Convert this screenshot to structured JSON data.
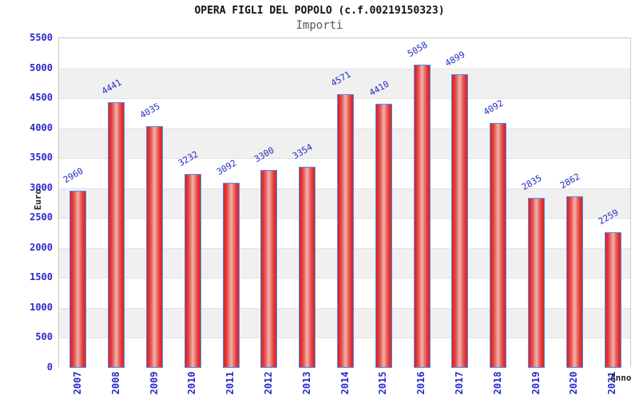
{
  "header": {
    "title": "OPERA FIGLI DEL POPOLO (c.f.00219150323)",
    "subtitle": "Importi"
  },
  "chart_data": {
    "type": "bar",
    "title": "OPERA FIGLI DEL POPOLO (c.f.00219150323)",
    "subtitle": "Importi",
    "xlabel": "Anno",
    "ylabel": "Euro",
    "categories": [
      "2007",
      "2008",
      "2009",
      "2010",
      "2011",
      "2012",
      "2013",
      "2014",
      "2015",
      "2016",
      "2017",
      "2018",
      "2019",
      "2020",
      "2021"
    ],
    "values": [
      2960,
      4441,
      4035,
      3232,
      3092,
      3300,
      3354,
      4571,
      4410,
      5058,
      4899,
      4092,
      2835,
      2862,
      2259
    ],
    "ylim": [
      0,
      5500
    ],
    "ytick_step": 500,
    "grid": "horizontal-alternating-bands",
    "legend": "none",
    "bar_labels_rotation_deg": -30,
    "x_labels_rotation_deg": -90,
    "colors": {
      "bar_edge": "#4f8df2",
      "bar_fill_edge": "#dc1e1e",
      "bar_fill_mid": "#e44744",
      "bar_fill_center": "#f0b3ad",
      "value_label_blue": "#2230c0",
      "tick_label_blue": "#2a2ace",
      "axis_title_dark": "#222222",
      "band_gray": "#f0f0f0",
      "grid_line": "#e2e2e2",
      "plot_border": "#c9c9c9",
      "subtitle_gray": "#595959",
      "title_black": "#111111"
    }
  }
}
